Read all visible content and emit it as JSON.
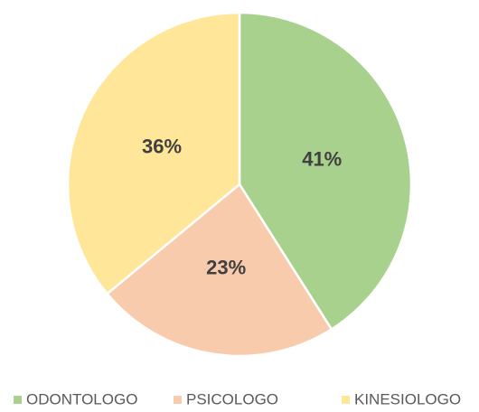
{
  "chart_data": {
    "type": "pie",
    "categories": [
      "ODONTOLOGO",
      "PSICOLOGO",
      "KINESIOLOGO"
    ],
    "values": [
      41,
      23,
      36
    ],
    "value_labels": [
      "41%",
      "23%",
      "36%"
    ],
    "colors": [
      "#a9d18e",
      "#f8cbad",
      "#ffe699"
    ]
  }
}
